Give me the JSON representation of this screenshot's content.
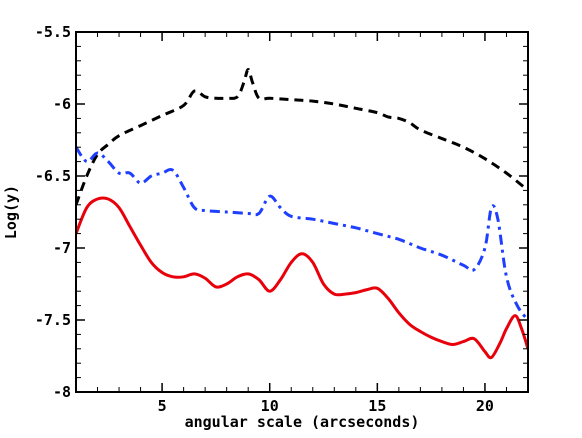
{
  "chart_data": {
    "type": "line",
    "title": "",
    "xlabel": "angular scale (arcseconds)",
    "ylabel": "Log(y)",
    "xlim": [
      1,
      22
    ],
    "ylim": [
      -8,
      -5.5
    ],
    "x_ticks": [
      5,
      10,
      15,
      20
    ],
    "x_tick_labels": [
      "5",
      "10",
      "15",
      "20"
    ],
    "y_ticks": [
      -8,
      -7.5,
      -7,
      -6.5,
      -6,
      -5.5
    ],
    "y_tick_labels": [
      "-8",
      "-7.5",
      "-7",
      "-6.5",
      "-6",
      "-5.5"
    ],
    "grid": false,
    "legend": false,
    "series": [
      {
        "color": "#000000",
        "dash": "dashed",
        "x": [
          1.0,
          1.5,
          2.0,
          2.5,
          3.0,
          4.0,
          5.0,
          6.0,
          6.5,
          7.0,
          7.5,
          8.0,
          8.5,
          8.8,
          9.0,
          9.2,
          9.5,
          10.0,
          11.0,
          12.0,
          13.0,
          14.0,
          15.0,
          15.5,
          16.0,
          16.5,
          17.0,
          18.0,
          19.0,
          20.0,
          21.0,
          22.0
        ],
        "y": [
          -6.7,
          -6.5,
          -6.35,
          -6.28,
          -6.22,
          -6.15,
          -6.08,
          -6.01,
          -5.91,
          -5.95,
          -5.96,
          -5.96,
          -5.95,
          -5.85,
          -5.76,
          -5.85,
          -5.96,
          -5.96,
          -5.97,
          -5.98,
          -6.0,
          -6.03,
          -6.06,
          -6.09,
          -6.1,
          -6.13,
          -6.18,
          -6.24,
          -6.3,
          -6.38,
          -6.48,
          -6.6
        ]
      },
      {
        "color": "#1f3fff",
        "dash": "dash-dot",
        "x": [
          1.0,
          1.5,
          2.0,
          2.5,
          3.0,
          3.5,
          4.0,
          4.5,
          5.0,
          5.5,
          6.0,
          6.5,
          7.0,
          8.0,
          9.0,
          9.5,
          10.0,
          10.5,
          11.0,
          12.0,
          13.0,
          14.0,
          15.0,
          16.0,
          17.0,
          18.0,
          19.0,
          19.5,
          20.0,
          20.3,
          20.6,
          21.0,
          21.5,
          22.0
        ],
        "y": [
          -6.3,
          -6.4,
          -6.34,
          -6.4,
          -6.48,
          -6.48,
          -6.55,
          -6.5,
          -6.48,
          -6.46,
          -6.58,
          -6.72,
          -6.74,
          -6.75,
          -6.76,
          -6.76,
          -6.64,
          -6.72,
          -6.78,
          -6.8,
          -6.83,
          -6.86,
          -6.9,
          -6.94,
          -7.0,
          -7.05,
          -7.12,
          -7.15,
          -7.0,
          -6.72,
          -6.8,
          -7.2,
          -7.4,
          -7.5
        ]
      },
      {
        "color": "#e8000b",
        "dash": "solid",
        "x": [
          1.0,
          1.5,
          2.0,
          2.5,
          3.0,
          3.5,
          4.0,
          4.5,
          5.0,
          5.5,
          6.0,
          6.5,
          7.0,
          7.5,
          8.0,
          8.5,
          9.0,
          9.5,
          10.0,
          10.5,
          11.0,
          11.5,
          12.0,
          12.5,
          13.0,
          13.5,
          14.0,
          14.5,
          15.0,
          15.5,
          16.0,
          16.5,
          17.0,
          17.5,
          18.0,
          18.5,
          19.0,
          19.5,
          20.0,
          20.3,
          20.7,
          21.0,
          21.4,
          21.7,
          22.0
        ],
        "y": [
          -6.9,
          -6.72,
          -6.66,
          -6.66,
          -6.72,
          -6.85,
          -6.98,
          -7.1,
          -7.17,
          -7.2,
          -7.2,
          -7.18,
          -7.21,
          -7.27,
          -7.25,
          -7.2,
          -7.18,
          -7.22,
          -7.3,
          -7.22,
          -7.1,
          -7.04,
          -7.1,
          -7.25,
          -7.32,
          -7.32,
          -7.31,
          -7.29,
          -7.28,
          -7.35,
          -7.45,
          -7.53,
          -7.58,
          -7.62,
          -7.65,
          -7.67,
          -7.65,
          -7.63,
          -7.72,
          -7.76,
          -7.66,
          -7.56,
          -7.47,
          -7.56,
          -7.7
        ]
      }
    ]
  }
}
